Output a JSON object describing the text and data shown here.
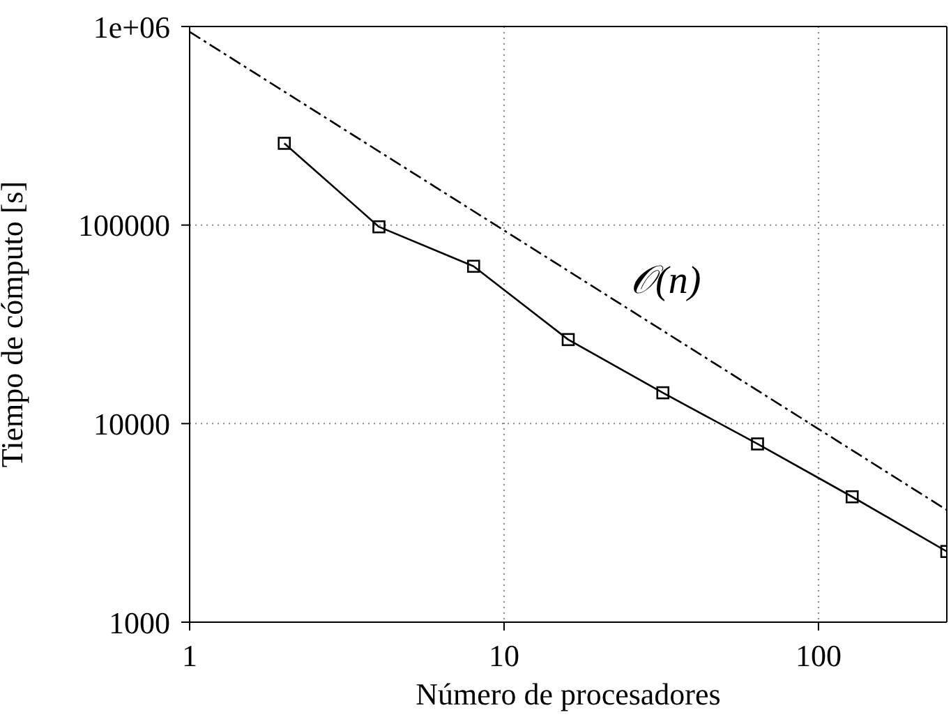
{
  "chart_data": {
    "type": "line",
    "xlabel": "Número de procesadores",
    "ylabel": "Tiempo de cómputo [s]",
    "log": "xy",
    "grid": true,
    "xlim": [
      1,
      256
    ],
    "xticks": [
      1,
      10,
      100
    ],
    "ylim": [
      1000,
      1000000
    ],
    "yticks": [
      1000,
      10000,
      100000,
      {
        "value": 1000000,
        "label": "1e+06"
      }
    ],
    "series": [
      {
        "color": "#000000",
        "marker": "square",
        "line_style": "solid",
        "x": [
          2,
          4,
          8,
          16,
          32,
          64,
          128,
          256
        ],
        "values": [
          258000,
          98000,
          62000,
          26500,
          14300,
          7900,
          4280,
          2270
        ]
      },
      {
        "color": "#000000",
        "marker": "none",
        "line_style": "dashed",
        "x": [
          1,
          256
        ],
        "values": [
          940000,
          3670
        ]
      }
    ],
    "annotations": [
      "𝒪(n)"
    ]
  }
}
